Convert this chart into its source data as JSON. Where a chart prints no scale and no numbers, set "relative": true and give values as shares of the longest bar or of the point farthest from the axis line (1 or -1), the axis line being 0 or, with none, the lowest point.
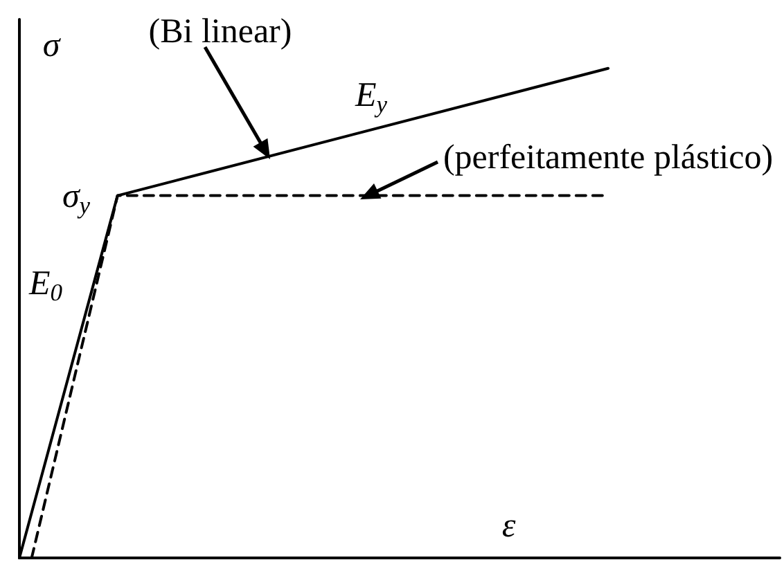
{
  "chart_data": {
    "type": "line",
    "relative": true,
    "xlabel": "ε",
    "ylabel": "σ",
    "marker": "none",
    "categories": [
      null,
      null,
      null,
      null,
      null,
      null,
      null,
      null,
      null,
      null,
      null,
      null,
      null,
      null,
      null,
      null,
      null,
      null,
      null,
      null,
      null,
      null,
      null,
      null,
      null,
      null,
      null,
      null,
      null,
      null,
      null,
      null,
      null,
      null,
      null,
      null,
      null,
      null,
      null,
      null,
      null,
      null,
      null,
      null,
      null,
      null,
      null,
      null,
      null,
      null,
      null,
      null,
      null,
      null,
      null,
      null,
      null,
      null,
      null,
      null,
      null,
      null,
      null
    ],
    "series": [
      {
        "color": "#000000",
        "line_style": "solid",
        "values": [
          0,
          null,
          null,
          null,
          null,
          null,
          null,
          null,
          0.74,
          null,
          null,
          null,
          null,
          null,
          null,
          null,
          null,
          null,
          null,
          null,
          null,
          null,
          null,
          null,
          null,
          null,
          null,
          null,
          null,
          null,
          null,
          null,
          null,
          null,
          null,
          null,
          null,
          null,
          null,
          null,
          null,
          null,
          null,
          null,
          null,
          null,
          null,
          null,
          1,
          null,
          null,
          null,
          null,
          null,
          null,
          null,
          null,
          null,
          null,
          null,
          null,
          null,
          null
        ]
      },
      {
        "color": "#000000",
        "line_style": "dashed",
        "values": [
          null,
          0,
          null,
          null,
          null,
          null,
          null,
          null,
          0.74,
          null,
          null,
          null,
          null,
          null,
          null,
          null,
          null,
          null,
          null,
          null,
          null,
          null,
          null,
          null,
          null,
          null,
          null,
          null,
          null,
          null,
          null,
          null,
          null,
          null,
          null,
          null,
          null,
          null,
          null,
          null,
          null,
          null,
          null,
          null,
          null,
          null,
          null,
          null,
          0.74,
          null,
          null,
          null,
          null,
          null,
          null,
          null,
          null,
          null,
          null,
          null,
          null,
          null,
          null
        ]
      }
    ],
    "annotations": [
      "(Bi linear)",
      "E$_{y}$",
      "(perfeitamente plástico)",
      "σ$_{y}$",
      "E$_{0}$"
    ]
  }
}
